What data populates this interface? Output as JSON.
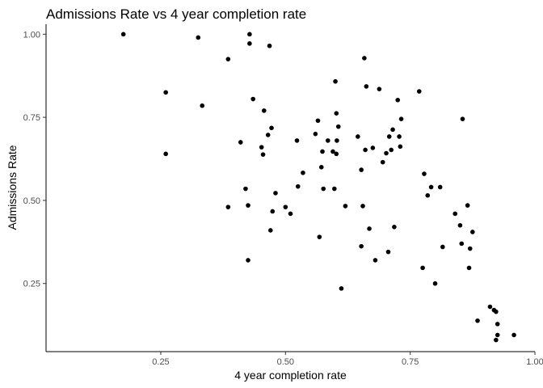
{
  "chart_data": {
    "type": "scatter",
    "title": "Admissions Rate vs 4 year completion rate",
    "xlabel": "4 year completion rate",
    "ylabel": "Admissions Rate",
    "xlim": [
      0.02,
      1.0
    ],
    "ylim": [
      0.045,
      1.03
    ],
    "xticks": [
      0.25,
      0.5,
      0.75,
      1.0
    ],
    "xtick_labels": [
      "0.25",
      "0.50",
      "0.75",
      "1.00"
    ],
    "yticks": [
      0.25,
      0.5,
      0.75,
      1.0
    ],
    "ytick_labels": [
      "0.25",
      "0.50",
      "0.75",
      "1.00"
    ],
    "grid": false,
    "point_color": "#000000",
    "points": [
      [
        0.175,
        1.0
      ],
      [
        0.26,
        0.825
      ],
      [
        0.26,
        0.64
      ],
      [
        0.325,
        0.99
      ],
      [
        0.333,
        0.785
      ],
      [
        0.385,
        0.925
      ],
      [
        0.385,
        0.48
      ],
      [
        0.41,
        0.675
      ],
      [
        0.42,
        0.535
      ],
      [
        0.425,
        0.32
      ],
      [
        0.425,
        0.485
      ],
      [
        0.428,
        1.0
      ],
      [
        0.428,
        0.972
      ],
      [
        0.435,
        0.805
      ],
      [
        0.452,
        0.66
      ],
      [
        0.455,
        0.638
      ],
      [
        0.457,
        0.77
      ],
      [
        0.465,
        0.697
      ],
      [
        0.468,
        0.965
      ],
      [
        0.47,
        0.41
      ],
      [
        0.472,
        0.718
      ],
      [
        0.474,
        0.467
      ],
      [
        0.48,
        0.522
      ],
      [
        0.5,
        0.48
      ],
      [
        0.51,
        0.46
      ],
      [
        0.523,
        0.68
      ],
      [
        0.525,
        0.542
      ],
      [
        0.535,
        0.583
      ],
      [
        0.56,
        0.7
      ],
      [
        0.565,
        0.74
      ],
      [
        0.568,
        0.39
      ],
      [
        0.572,
        0.6
      ],
      [
        0.574,
        0.647
      ],
      [
        0.576,
        0.535
      ],
      [
        0.585,
        0.68
      ],
      [
        0.595,
        0.647
      ],
      [
        0.598,
        0.535
      ],
      [
        0.6,
        0.858
      ],
      [
        0.602,
        0.762
      ],
      [
        0.602,
        0.64
      ],
      [
        0.603,
        0.68
      ],
      [
        0.606,
        0.722
      ],
      [
        0.612,
        0.235
      ],
      [
        0.62,
        0.483
      ],
      [
        0.645,
        0.692
      ],
      [
        0.652,
        0.362
      ],
      [
        0.652,
        0.592
      ],
      [
        0.655,
        0.483
      ],
      [
        0.658,
        0.928
      ],
      [
        0.66,
        0.652
      ],
      [
        0.662,
        0.843
      ],
      [
        0.668,
        0.415
      ],
      [
        0.675,
        0.658
      ],
      [
        0.68,
        0.32
      ],
      [
        0.688,
        0.835
      ],
      [
        0.695,
        0.615
      ],
      [
        0.702,
        0.642
      ],
      [
        0.706,
        0.345
      ],
      [
        0.708,
        0.692
      ],
      [
        0.712,
        0.652
      ],
      [
        0.715,
        0.713
      ],
      [
        0.718,
        0.42
      ],
      [
        0.725,
        0.802
      ],
      [
        0.728,
        0.692
      ],
      [
        0.73,
        0.662
      ],
      [
        0.732,
        0.745
      ],
      [
        0.768,
        0.828
      ],
      [
        0.775,
        0.297
      ],
      [
        0.778,
        0.58
      ],
      [
        0.785,
        0.515
      ],
      [
        0.792,
        0.54
      ],
      [
        0.8,
        0.25
      ],
      [
        0.81,
        0.54
      ],
      [
        0.815,
        0.36
      ],
      [
        0.84,
        0.46
      ],
      [
        0.85,
        0.425
      ],
      [
        0.853,
        0.37
      ],
      [
        0.855,
        0.745
      ],
      [
        0.865,
        0.485
      ],
      [
        0.868,
        0.297
      ],
      [
        0.87,
        0.355
      ],
      [
        0.875,
        0.405
      ],
      [
        0.885,
        0.138
      ],
      [
        0.91,
        0.18
      ],
      [
        0.918,
        0.17
      ],
      [
        0.922,
        0.165
      ],
      [
        0.922,
        0.08
      ],
      [
        0.925,
        0.128
      ],
      [
        0.925,
        0.095
      ],
      [
        0.958,
        0.095
      ]
    ]
  }
}
